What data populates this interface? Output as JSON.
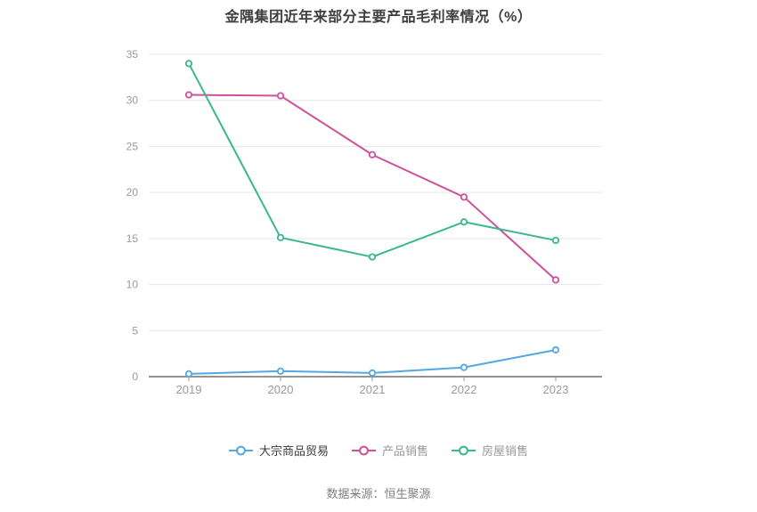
{
  "page": {
    "title": "金隅集团近年来部分主要产品毛利率情况（%）",
    "source_note": "数据来源：恒生聚源"
  },
  "chart_data": {
    "type": "line",
    "title": "金隅集团近年来部分主要产品毛利率情况（%）",
    "categories": [
      "2019",
      "2020",
      "2021",
      "2022",
      "2023"
    ],
    "series": [
      {
        "name": "大宗商品贸易",
        "color": "#53a8e2",
        "legend_text_color": "#3d3d3d",
        "values": [
          0.3,
          0.6,
          0.4,
          1.0,
          2.9
        ]
      },
      {
        "name": "产品销售",
        "color": "#cd519c",
        "legend_text_color": "#96999e",
        "values": [
          30.6,
          30.5,
          24.1,
          19.5,
          10.5
        ]
      },
      {
        "name": "房屋销售",
        "color": "#3bb78c",
        "legend_text_color": "#96999e",
        "values": [
          34.0,
          15.1,
          13.0,
          16.8,
          14.8
        ]
      }
    ],
    "ylabel": "",
    "xlabel": "",
    "ylim": [
      0,
      35
    ],
    "y_ticks": [
      0,
      5,
      10,
      15,
      20,
      25,
      30,
      35
    ],
    "grid": true,
    "legend_position": "bottom",
    "marker_style": "hollow-circle",
    "colors": {
      "axis_label": "#9a9a9a",
      "grid_line": "#e6e6e6",
      "axis_line": "#707070",
      "tick_mark": "#999999",
      "title": "#3f3f3f",
      "source_note": "#808080"
    }
  }
}
